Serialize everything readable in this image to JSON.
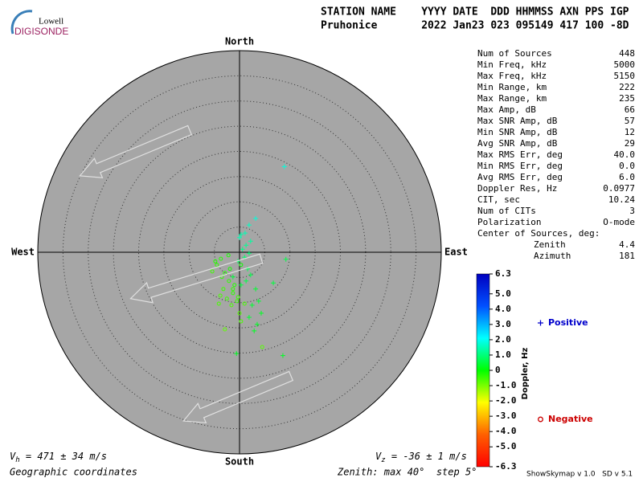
{
  "header": {
    "logo_top": "Lowell",
    "logo_bottom": "DIGISONDE",
    "line1": "STATION NAME    YYYY DATE  DDD HHMMSS AXN PPS IGP",
    "line2": "Pruhonice       2022 Jan23 023 095149 417 100 -8D"
  },
  "chart_data": {
    "type": "skymap",
    "directions": {
      "north": "North",
      "south": "South",
      "east": "East",
      "west": "West"
    },
    "rlim": [
      0,
      40
    ],
    "rings": [
      5,
      10,
      15,
      20,
      25,
      30,
      35
    ],
    "colormap": [
      "#ff0000",
      "#ff6000",
      "#ffff00",
      "#00ff00",
      "#00ffff",
      "#0050ff",
      "#0000c0"
    ],
    "clim": [
      -6.3,
      6.3
    ],
    "cticks": [
      6.3,
      {
        "value": 5,
        "label": "5.0"
      },
      {
        "value": 4,
        "label": "4.0"
      },
      {
        "value": 3,
        "label": "3.0"
      },
      {
        "value": 2,
        "label": "2.0"
      },
      {
        "value": 1,
        "label": "1.0"
      },
      0,
      {
        "value": -1,
        "label": "-1.0"
      },
      {
        "value": -2,
        "label": "-2.0"
      },
      {
        "value": -3,
        "label": "-3.0"
      },
      {
        "value": -4,
        "label": "-4.0"
      },
      {
        "value": -5,
        "label": "-5.0"
      },
      -6.3
    ],
    "colorbar_label": "Doppler, Hz",
    "series": [
      {
        "name": "Positive",
        "color": "#0000cc",
        "marker": "plus",
        "x": [
          3.2,
          1.9,
          1.1,
          0.3,
          2.2,
          1.3,
          0,
          1.9,
          1.0,
          -0.3,
          9.2,
          8.9,
          6.7,
          3.8,
          0.3,
          2.5,
          1.9,
          3.5,
          2.9,
          8.6,
          1.3,
          -1.3,
          2.2,
          1.6,
          3.2,
          4.3,
          -0.6,
          0.6
        ],
        "values": [
          6.7,
          5.4,
          3.8,
          3.5,
          2.2,
          1.4,
          2.9,
          -0.2,
          -1.0,
          -1.8,
          -1.4,
          17.0,
          -6.1,
          -9.7,
          -6.5,
          -10.5,
          -12.9,
          -14.3,
          -15.6,
          -20.5,
          -5.7,
          -4.9,
          -4.5,
          -3.3,
          -7.3,
          -12.1,
          -20.1,
          0.6
        ],
        "doppler": [
          1.8,
          1.6,
          1.5,
          1.4,
          1.3,
          1.2,
          1.5,
          1.0,
          0.9,
          0.8,
          0.6,
          1.8,
          0.5,
          0.4,
          0.5,
          0.4,
          0.4,
          0.3,
          0.3,
          0.3,
          0.6,
          0.5,
          0.6,
          0.7,
          0.4,
          0.3,
          0.3,
          1.1
        ]
      },
      {
        "name": "Negative",
        "color": "#cc0000",
        "marker": "circle",
        "x": [
          -3.7,
          -4.5,
          -2.9,
          -2.1,
          -3.2,
          -4.1,
          -2.5,
          -1.3,
          -1.6,
          -0.5,
          0,
          -2.9,
          0.3,
          -1.0,
          -1.9,
          -3.5,
          -5.4,
          -0.3,
          1.0,
          4.5,
          -4.8,
          -2.2,
          0.3,
          -1.3,
          -3.8
        ],
        "values": [
          -1.3,
          -2.5,
          -4.1,
          -5.7,
          -7.3,
          -10.2,
          -9.2,
          -8.1,
          -10.5,
          -9.7,
          -12.1,
          -15.3,
          -13.7,
          -6.5,
          -3.3,
          -4.9,
          -3.8,
          -8.9,
          -10.2,
          -18.8,
          -1.8,
          -0.6,
          -2.5,
          -7.3,
          -8.6
        ],
        "doppler": [
          -0.3,
          -0.4,
          -0.3,
          -0.4,
          -0.5,
          -0.6,
          -0.5,
          -0.4,
          -0.6,
          -0.5,
          -0.7,
          -0.8,
          -0.6,
          -0.3,
          -0.2,
          -0.4,
          -0.5,
          -0.5,
          -0.6,
          -0.7,
          -0.3,
          -0.2,
          -0.1,
          -0.4,
          -0.6
        ]
      }
    ]
  },
  "stats": {
    "rows": [
      [
        "Num of Sources",
        "448"
      ],
      [
        "Min Freq, kHz",
        "5000"
      ],
      [
        "Max Freq, kHz",
        "5150"
      ],
      [
        "Min Range, km",
        "222"
      ],
      [
        "Max Range, km",
        "235"
      ],
      [
        "Max Amp, dB",
        "66"
      ],
      [
        "Max SNR Amp, dB",
        "57"
      ],
      [
        "Min SNR Amp, dB",
        "12"
      ],
      [
        "Avg SNR Amp, dB",
        "29"
      ],
      [
        "Max RMS Err, deg",
        "40.0"
      ],
      [
        "Min RMS Err, deg",
        "0.0"
      ],
      [
        "Avg RMS Err, deg",
        "6.0"
      ],
      [
        "Doppler Res, Hz",
        "0.0977"
      ],
      [
        "CIT, sec",
        "10.24"
      ],
      [
        "Num of CITs",
        "3"
      ],
      [
        "Polarization",
        "O-mode"
      ]
    ],
    "center_label": "Center of Sources, deg:",
    "center_rows": [
      [
        "Zenith",
        "4.4"
      ],
      [
        "Azimuth",
        "181"
      ]
    ]
  },
  "footer": {
    "vh_symbol": "V",
    "vh_sub": "h",
    "vh_text": " = 471 ± 34 m/s",
    "vz_symbol": "V",
    "vz_sub": "z",
    "vz_text": " = -36 ± 1 m/s",
    "coords": "Geographic coordinates",
    "zenith": "Zenith: max 40°  step 5°",
    "version": "ShowSkymap v 1.0   SD v 5.1"
  }
}
